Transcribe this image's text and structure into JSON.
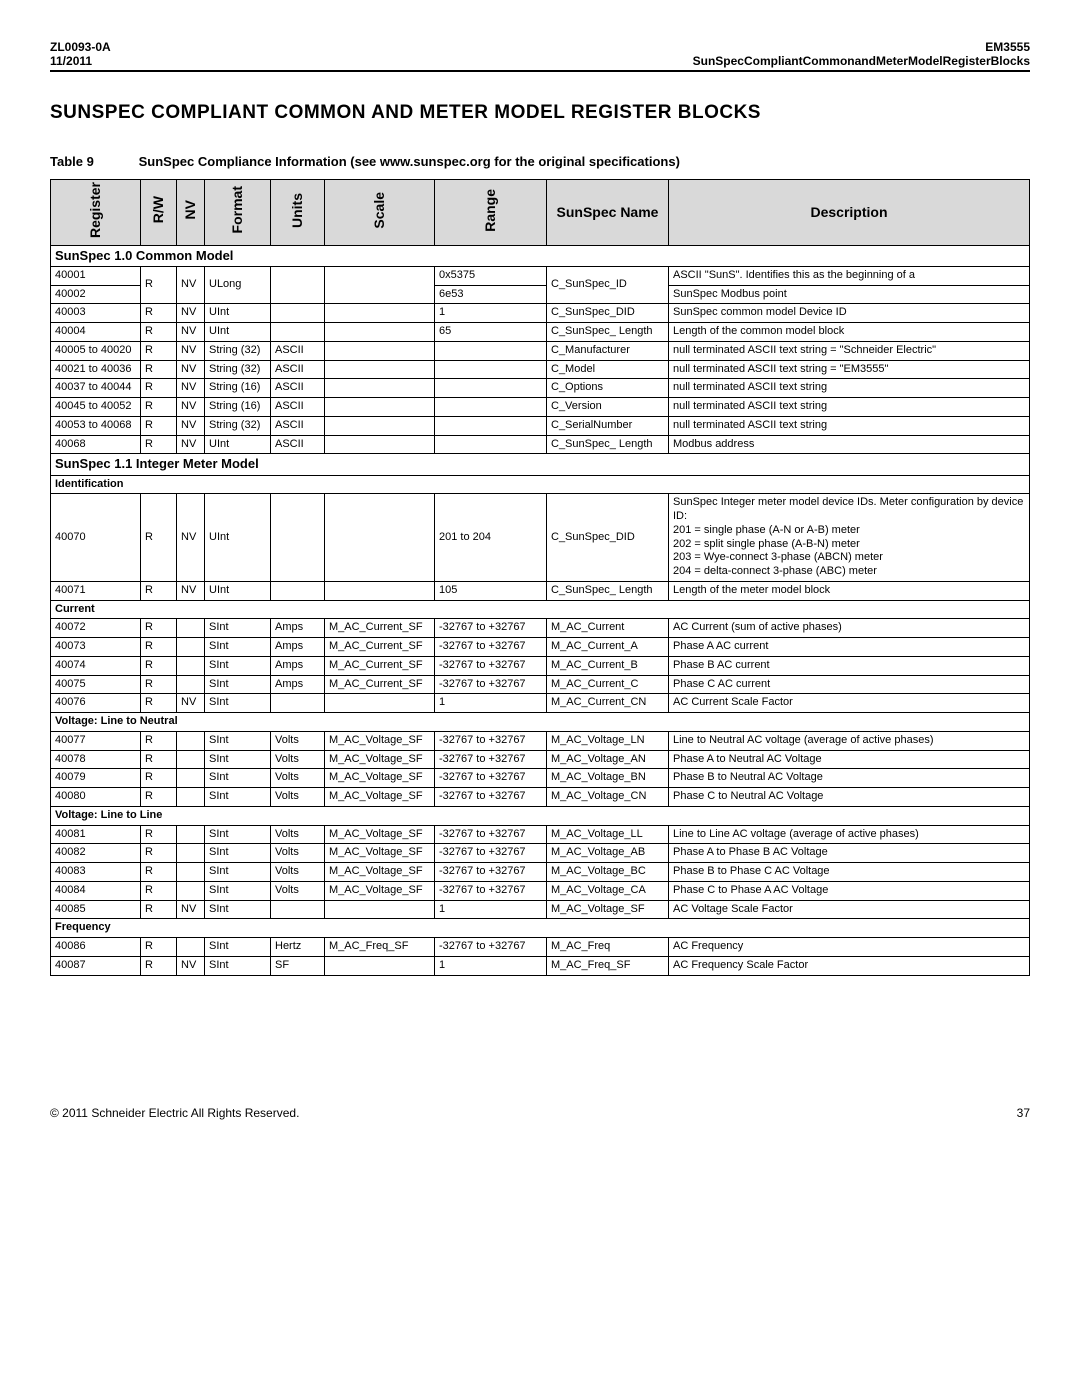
{
  "header": {
    "code": "ZL0093-0A",
    "date": "11/2011",
    "product": "EM3555",
    "subtitle": "SunSpecCompliantCommonandMeterModelRegisterBlocks"
  },
  "title": "SUNSPEC COMPLIANT COMMON AND METER MODEL REGISTER BLOCKS",
  "caption": {
    "label": "Table 9",
    "text": "SunSpec Compliance Information (see www.sunspec.org for the original specifications)"
  },
  "columns": [
    "Register",
    "R/W",
    "NV",
    "Format",
    "Units",
    "Scale",
    "Range",
    "SunSpec Name",
    "Description"
  ],
  "sections": [
    {
      "title": "SunSpec 1.0 Common Model",
      "groups": [
        {
          "label": null,
          "rows": [
            [
              "40001",
              "R",
              "NV",
              "ULong",
              "",
              "",
              "0x5375",
              "C_SunSpec_ID",
              "ASCII \"SunS\". Identifies this as the beginning of a"
            ],
            [
              "40002",
              "R",
              "NV",
              "ULong",
              "",
              "",
              "6e53",
              "C_SunSpec_ID",
              "SunSpec Modbus point"
            ],
            [
              "40003",
              "R",
              "NV",
              "UInt",
              "",
              "",
              "1",
              "C_SunSpec_DID",
              "SunSpec common model Device ID"
            ],
            [
              "40004",
              "R",
              "NV",
              "UInt",
              "",
              "",
              "65",
              "C_SunSpec_ Length",
              "Length of the common model block"
            ],
            [
              "40005 to 40020",
              "R",
              "NV",
              "String (32)",
              "ASCII",
              "",
              "",
              "C_Manufacturer",
              "null terminated ASCII text string = \"Schneider Electric\""
            ],
            [
              "40021 to 40036",
              "R",
              "NV",
              "String (32)",
              "ASCII",
              "",
              "",
              "C_Model",
              "null terminated ASCII text string = \"EM3555\""
            ],
            [
              "40037 to 40044",
              "R",
              "NV",
              "String (16)",
              "ASCII",
              "",
              "",
              "C_Options",
              "null terminated ASCII text string"
            ],
            [
              "40045 to 40052",
              "R",
              "NV",
              "String (16)",
              "ASCII",
              "",
              "",
              "C_Version",
              "null terminated ASCII text string"
            ],
            [
              "40053 to 40068",
              "R",
              "NV",
              "String (32)",
              "ASCII",
              "",
              "",
              "C_SerialNumber",
              "null terminated ASCII text string"
            ],
            [
              "40068",
              "R",
              "NV",
              "UInt",
              "ASCII",
              "",
              "",
              "C_SunSpec_ Length",
              "Modbus address"
            ]
          ],
          "merge12": true
        }
      ]
    },
    {
      "title": "SunSpec 1.1 Integer Meter Model",
      "groups": [
        {
          "label": "Identification",
          "rows": [
            [
              "40070",
              "R",
              "NV",
              "UInt",
              "",
              "",
              "201 to 204",
              "C_SunSpec_DID",
              "SunSpec Integer meter model device IDs. Meter configuration by device ID:\n201 = single phase (A-N or A-B) meter\n202 = split single phase (A-B-N) meter\n203 = Wye-connect 3-phase (ABCN) meter\n204 = delta-connect 3-phase (ABC) meter"
            ],
            [
              "40071",
              "R",
              "NV",
              "UInt",
              "",
              "",
              "105",
              "C_SunSpec_ Length",
              "Length of the meter model block"
            ]
          ]
        },
        {
          "label": "Current",
          "rows": [
            [
              "40072",
              "R",
              "",
              "SInt",
              "Amps",
              "M_AC_Current_SF",
              "-32767 to +32767",
              "M_AC_Current",
              "AC Current (sum of active phases)"
            ],
            [
              "40073",
              "R",
              "",
              "SInt",
              "Amps",
              "M_AC_Current_SF",
              "-32767 to +32767",
              "M_AC_Current_A",
              "Phase A AC current"
            ],
            [
              "40074",
              "R",
              "",
              "SInt",
              "Amps",
              "M_AC_Current_SF",
              "-32767 to +32767",
              "M_AC_Current_B",
              "Phase B AC current"
            ],
            [
              "40075",
              "R",
              "",
              "SInt",
              "Amps",
              "M_AC_Current_SF",
              "-32767 to +32767",
              "M_AC_Current_C",
              "Phase C AC current"
            ],
            [
              "40076",
              "R",
              "NV",
              "SInt",
              "",
              "",
              "1",
              "M_AC_Current_CN",
              "AC Current Scale Factor"
            ]
          ]
        },
        {
          "label": "Voltage:  Line to Neutral",
          "rows": [
            [
              "40077",
              "R",
              "",
              "SInt",
              "Volts",
              "M_AC_Voltage_SF",
              "-32767 to +32767",
              "M_AC_Voltage_LN",
              "Line to Neutral AC voltage (average of active phases)"
            ],
            [
              "40078",
              "R",
              "",
              "SInt",
              "Volts",
              "M_AC_Voltage_SF",
              "-32767 to +32767",
              "M_AC_Voltage_AN",
              "Phase A to Neutral AC Voltage"
            ],
            [
              "40079",
              "R",
              "",
              "SInt",
              "Volts",
              "M_AC_Voltage_SF",
              "-32767 to +32767",
              "M_AC_Voltage_BN",
              "Phase B to Neutral AC Voltage"
            ],
            [
              "40080",
              "R",
              "",
              "SInt",
              "Volts",
              "M_AC_Voltage_SF",
              "-32767 to +32767",
              "M_AC_Voltage_CN",
              "Phase C to Neutral AC Voltage"
            ]
          ]
        },
        {
          "label": "Voltage:  Line to Line",
          "rows": [
            [
              "40081",
              "R",
              "",
              "SInt",
              "Volts",
              "M_AC_Voltage_SF",
              "-32767 to +32767",
              "M_AC_Voltage_LL",
              "Line to Line AC voltage (average of active phases)"
            ],
            [
              "40082",
              "R",
              "",
              "SInt",
              "Volts",
              "M_AC_Voltage_SF",
              "-32767 to +32767",
              "M_AC_Voltage_AB",
              "Phase A to Phase B AC Voltage"
            ],
            [
              "40083",
              "R",
              "",
              "SInt",
              "Volts",
              "M_AC_Voltage_SF",
              "-32767 to +32767",
              "M_AC_Voltage_BC",
              "Phase B to Phase C AC Voltage"
            ],
            [
              "40084",
              "R",
              "",
              "SInt",
              "Volts",
              "M_AC_Voltage_SF",
              "-32767 to +32767",
              "M_AC_Voltage_CA",
              "Phase C to Phase A AC Voltage"
            ],
            [
              "40085",
              "R",
              "NV",
              "SInt",
              "",
              "",
              "1",
              "M_AC_Voltage_SF",
              "AC Voltage Scale Factor"
            ]
          ]
        },
        {
          "label": "Frequency",
          "rows": [
            [
              "40086",
              "R",
              "",
              "SInt",
              "Hertz",
              "M_AC_Freq_SF",
              "-32767 to +32767",
              "M_AC_Freq",
              "AC Frequency"
            ],
            [
              "40087",
              "R",
              "NV",
              "SInt",
              "SF",
              "",
              "1",
              "M_AC_Freq_SF",
              "AC Frequency Scale Factor"
            ]
          ]
        }
      ]
    }
  ],
  "footer": {
    "copyright": "© 2011 Schneider Electric All Rights Reserved.",
    "page": "37"
  }
}
